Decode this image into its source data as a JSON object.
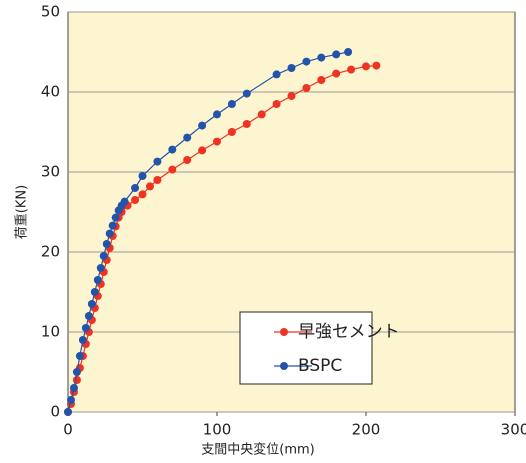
{
  "chart_data": {
    "type": "line",
    "x_label": "支間中央変位(mm)",
    "y_label": "荷重(KN)",
    "xlim": [
      0,
      300
    ],
    "xticks": [
      0,
      100,
      200,
      300
    ],
    "ylim": [
      0,
      50
    ],
    "yticks": [
      0,
      10,
      20,
      30,
      40,
      50
    ],
    "grid": true,
    "legend": "lower right",
    "series": [
      {
        "name": "早強セメント",
        "color": "#ee3322",
        "x": [
          0,
          2,
          4,
          6,
          8,
          10,
          12,
          14,
          16,
          18,
          20,
          22,
          24,
          26,
          28,
          30,
          32,
          34,
          36,
          40,
          45,
          50,
          55,
          60,
          70,
          80,
          90,
          100,
          110,
          120,
          130,
          140,
          150,
          160,
          170,
          180,
          190,
          200,
          207
        ],
        "values": [
          0,
          1,
          2.5,
          4,
          5.5,
          7,
          8.5,
          10,
          11.5,
          13,
          14.5,
          16,
          17.5,
          19,
          20.5,
          22,
          23.2,
          24.3,
          25,
          25.8,
          26.5,
          27.2,
          28.2,
          29,
          30.3,
          31.5,
          32.7,
          33.8,
          35,
          36,
          37.2,
          38.5,
          39.5,
          40.5,
          41.5,
          42.3,
          42.8,
          43.2,
          43.3
        ]
      },
      {
        "name": "BSPC",
        "color": "#2255aa",
        "x": [
          0,
          2,
          4,
          6,
          8,
          10,
          12,
          14,
          16,
          18,
          20,
          22,
          24,
          26,
          28,
          30,
          32,
          34,
          36,
          38,
          45,
          50,
          60,
          70,
          80,
          90,
          100,
          110,
          120,
          140,
          150,
          160,
          170,
          180,
          188
        ],
        "values": [
          0,
          1.5,
          3,
          5,
          7,
          9,
          10.5,
          12,
          13.5,
          15,
          16.5,
          18,
          19.5,
          21,
          22.3,
          23.3,
          24.3,
          25.2,
          25.8,
          26.3,
          28,
          29.5,
          31.3,
          32.8,
          34.3,
          35.8,
          37.2,
          38.5,
          39.8,
          42.2,
          43,
          43.8,
          44.3,
          44.7,
          45
        ]
      }
    ]
  }
}
